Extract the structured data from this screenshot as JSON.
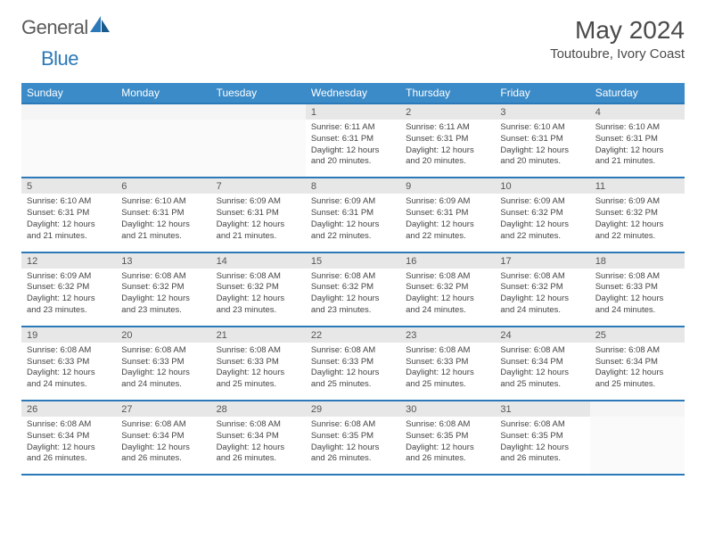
{
  "logo": {
    "text1": "General",
    "text2": "Blue"
  },
  "title": "May 2024",
  "location": "Toutoubre, Ivory Coast",
  "colors": {
    "header_bg": "#3b8bc9",
    "header_text": "#ffffff",
    "accent_border": "#2b79b8",
    "daynum_bg": "#e7e7e7",
    "text": "#444444",
    "logo_gray": "#5a5a5a",
    "logo_blue": "#2b79b8"
  },
  "day_headers": [
    "Sunday",
    "Monday",
    "Tuesday",
    "Wednesday",
    "Thursday",
    "Friday",
    "Saturday"
  ],
  "weeks": [
    [
      {
        "num": "",
        "content": ""
      },
      {
        "num": "",
        "content": ""
      },
      {
        "num": "",
        "content": ""
      },
      {
        "num": "1",
        "content": "Sunrise: 6:11 AM\nSunset: 6:31 PM\nDaylight: 12 hours and 20 minutes."
      },
      {
        "num": "2",
        "content": "Sunrise: 6:11 AM\nSunset: 6:31 PM\nDaylight: 12 hours and 20 minutes."
      },
      {
        "num": "3",
        "content": "Sunrise: 6:10 AM\nSunset: 6:31 PM\nDaylight: 12 hours and 20 minutes."
      },
      {
        "num": "4",
        "content": "Sunrise: 6:10 AM\nSunset: 6:31 PM\nDaylight: 12 hours and 21 minutes."
      }
    ],
    [
      {
        "num": "5",
        "content": "Sunrise: 6:10 AM\nSunset: 6:31 PM\nDaylight: 12 hours and 21 minutes."
      },
      {
        "num": "6",
        "content": "Sunrise: 6:10 AM\nSunset: 6:31 PM\nDaylight: 12 hours and 21 minutes."
      },
      {
        "num": "7",
        "content": "Sunrise: 6:09 AM\nSunset: 6:31 PM\nDaylight: 12 hours and 21 minutes."
      },
      {
        "num": "8",
        "content": "Sunrise: 6:09 AM\nSunset: 6:31 PM\nDaylight: 12 hours and 22 minutes."
      },
      {
        "num": "9",
        "content": "Sunrise: 6:09 AM\nSunset: 6:31 PM\nDaylight: 12 hours and 22 minutes."
      },
      {
        "num": "10",
        "content": "Sunrise: 6:09 AM\nSunset: 6:32 PM\nDaylight: 12 hours and 22 minutes."
      },
      {
        "num": "11",
        "content": "Sunrise: 6:09 AM\nSunset: 6:32 PM\nDaylight: 12 hours and 22 minutes."
      }
    ],
    [
      {
        "num": "12",
        "content": "Sunrise: 6:09 AM\nSunset: 6:32 PM\nDaylight: 12 hours and 23 minutes."
      },
      {
        "num": "13",
        "content": "Sunrise: 6:08 AM\nSunset: 6:32 PM\nDaylight: 12 hours and 23 minutes."
      },
      {
        "num": "14",
        "content": "Sunrise: 6:08 AM\nSunset: 6:32 PM\nDaylight: 12 hours and 23 minutes."
      },
      {
        "num": "15",
        "content": "Sunrise: 6:08 AM\nSunset: 6:32 PM\nDaylight: 12 hours and 23 minutes."
      },
      {
        "num": "16",
        "content": "Sunrise: 6:08 AM\nSunset: 6:32 PM\nDaylight: 12 hours and 24 minutes."
      },
      {
        "num": "17",
        "content": "Sunrise: 6:08 AM\nSunset: 6:32 PM\nDaylight: 12 hours and 24 minutes."
      },
      {
        "num": "18",
        "content": "Sunrise: 6:08 AM\nSunset: 6:33 PM\nDaylight: 12 hours and 24 minutes."
      }
    ],
    [
      {
        "num": "19",
        "content": "Sunrise: 6:08 AM\nSunset: 6:33 PM\nDaylight: 12 hours and 24 minutes."
      },
      {
        "num": "20",
        "content": "Sunrise: 6:08 AM\nSunset: 6:33 PM\nDaylight: 12 hours and 24 minutes."
      },
      {
        "num": "21",
        "content": "Sunrise: 6:08 AM\nSunset: 6:33 PM\nDaylight: 12 hours and 25 minutes."
      },
      {
        "num": "22",
        "content": "Sunrise: 6:08 AM\nSunset: 6:33 PM\nDaylight: 12 hours and 25 minutes."
      },
      {
        "num": "23",
        "content": "Sunrise: 6:08 AM\nSunset: 6:33 PM\nDaylight: 12 hours and 25 minutes."
      },
      {
        "num": "24",
        "content": "Sunrise: 6:08 AM\nSunset: 6:34 PM\nDaylight: 12 hours and 25 minutes."
      },
      {
        "num": "25",
        "content": "Sunrise: 6:08 AM\nSunset: 6:34 PM\nDaylight: 12 hours and 25 minutes."
      }
    ],
    [
      {
        "num": "26",
        "content": "Sunrise: 6:08 AM\nSunset: 6:34 PM\nDaylight: 12 hours and 26 minutes."
      },
      {
        "num": "27",
        "content": "Sunrise: 6:08 AM\nSunset: 6:34 PM\nDaylight: 12 hours and 26 minutes."
      },
      {
        "num": "28",
        "content": "Sunrise: 6:08 AM\nSunset: 6:34 PM\nDaylight: 12 hours and 26 minutes."
      },
      {
        "num": "29",
        "content": "Sunrise: 6:08 AM\nSunset: 6:35 PM\nDaylight: 12 hours and 26 minutes."
      },
      {
        "num": "30",
        "content": "Sunrise: 6:08 AM\nSunset: 6:35 PM\nDaylight: 12 hours and 26 minutes."
      },
      {
        "num": "31",
        "content": "Sunrise: 6:08 AM\nSunset: 6:35 PM\nDaylight: 12 hours and 26 minutes."
      },
      {
        "num": "",
        "content": ""
      }
    ]
  ]
}
